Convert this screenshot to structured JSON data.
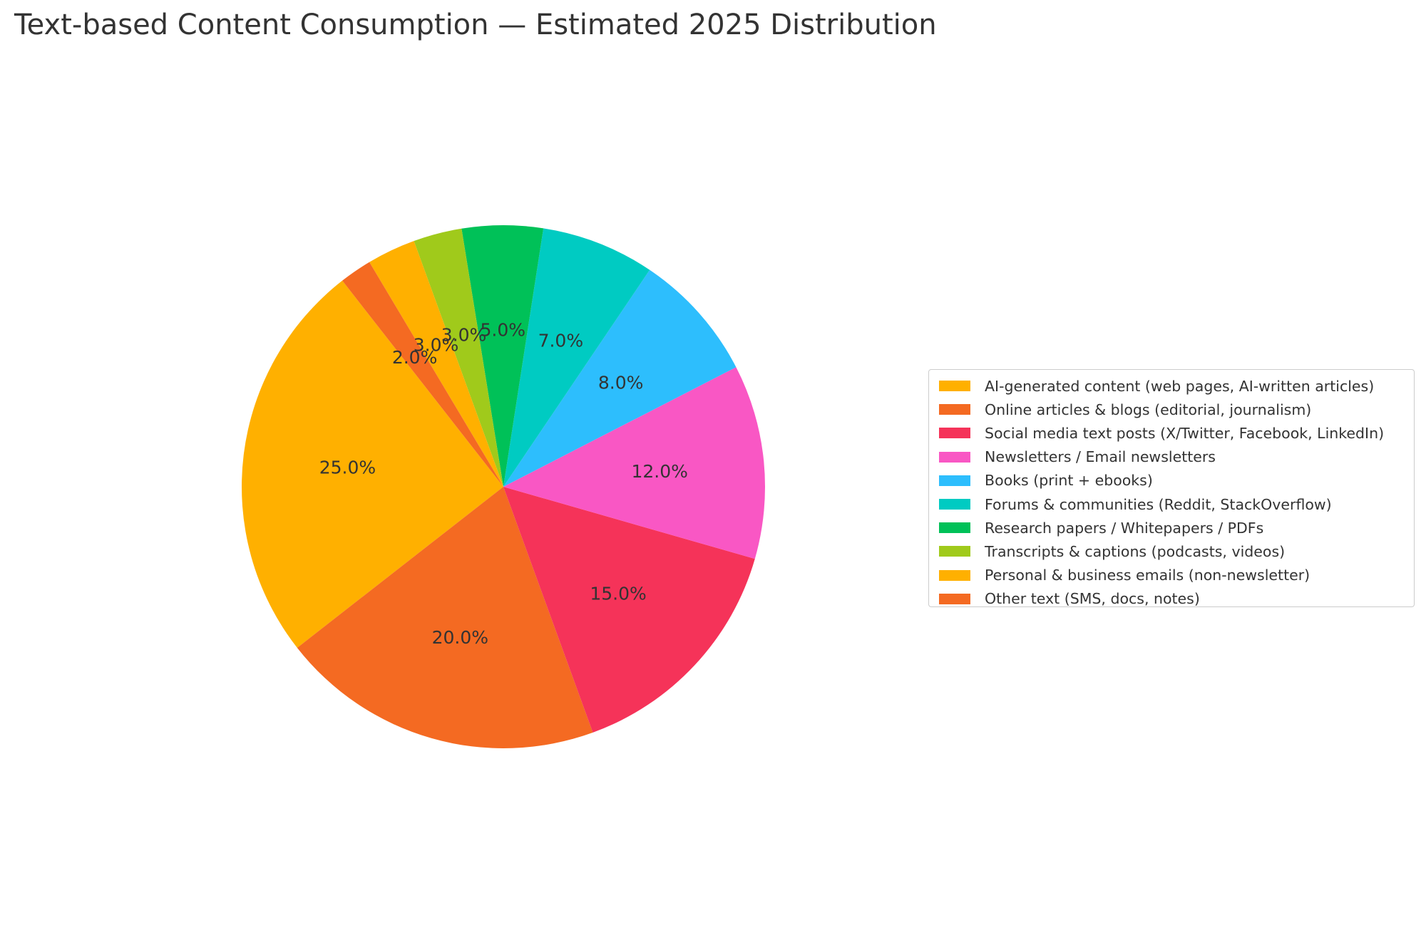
{
  "title": "Text-based Content Consumption — Estimated 2025 Distribution",
  "chart_data": {
    "type": "pie",
    "title": "Text-based Content Consumption — Estimated 2025 Distribution",
    "legend_position": "right",
    "direction": "counterclockwise",
    "start_angle_deg": 128,
    "slices": [
      {
        "label": "AI-generated content (web pages, AI-written articles)",
        "value": 25.0,
        "pct_label": "25.0%",
        "color": "#FFB000"
      },
      {
        "label": "Online articles & blogs (editorial, journalism)",
        "value": 20.0,
        "pct_label": "20.0%",
        "color": "#F46A22"
      },
      {
        "label": "Social media text posts (X/Twitter, Facebook, LinkedIn)",
        "value": 15.0,
        "pct_label": "15.0%",
        "color": "#F53359"
      },
      {
        "label": "Newsletters / Email newsletters",
        "value": 12.0,
        "pct_label": "12.0%",
        "color": "#F957C4"
      },
      {
        "label": "Books (print + ebooks)",
        "value": 8.0,
        "pct_label": "8.0%",
        "color": "#2DBEFD"
      },
      {
        "label": "Forums & communities (Reddit, StackOverflow)",
        "value": 7.0,
        "pct_label": "7.0%",
        "color": "#00CBC2"
      },
      {
        "label": "Research papers / Whitepapers / PDFs",
        "value": 5.0,
        "pct_label": "5.0%",
        "color": "#00C158"
      },
      {
        "label": "Transcripts & captions (podcasts, videos)",
        "value": 3.0,
        "pct_label": "3.0%",
        "color": "#A0CA1B"
      },
      {
        "label": "Personal & business emails (non-newsletter)",
        "value": 3.0,
        "pct_label": "3.0%",
        "color": "#FFB000"
      },
      {
        "label": "Other text (SMS, docs, notes)",
        "value": 2.0,
        "pct_label": "2.0%",
        "color": "#F46A22"
      }
    ]
  }
}
